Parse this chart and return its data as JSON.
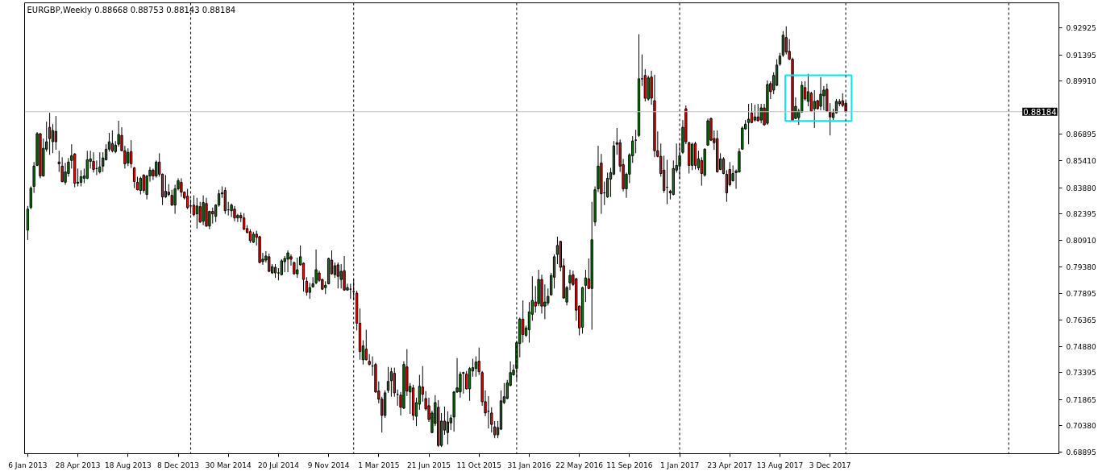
{
  "chart_data": {
    "type": "candlestick",
    "title": "EURGBP,Weekly 0.88668 0.88753 0.88143 0.88184",
    "x": [
      "2013-01-06",
      "2013-01-13",
      "2013-01-20",
      "2013-01-27",
      "2013-02-03",
      "2013-02-10",
      "2013-02-17",
      "2013-02-24",
      "2013-03-03",
      "2013-03-10",
      "2013-03-17",
      "2013-03-24",
      "2013-03-31",
      "2013-04-07",
      "2013-04-14",
      "2013-04-21",
      "2013-04-28",
      "2013-05-05",
      "2013-05-12",
      "2013-05-19",
      "2013-05-26",
      "2013-06-02",
      "2013-06-09",
      "2013-06-16",
      "2013-06-23",
      "2013-06-30",
      "2013-07-07",
      "2013-07-14",
      "2013-07-21",
      "2013-07-28",
      "2013-08-04",
      "2013-08-11",
      "2013-08-18",
      "2013-08-25",
      "2013-09-01",
      "2013-09-08",
      "2013-09-15",
      "2013-09-22",
      "2013-09-29",
      "2013-10-06",
      "2013-10-13",
      "2013-10-20",
      "2013-10-27",
      "2013-11-03",
      "2013-11-10",
      "2013-11-17",
      "2013-11-24",
      "2013-12-01",
      "2013-12-08",
      "2013-12-15",
      "2013-12-22",
      "2013-12-29",
      "2014-01-05",
      "2014-01-12",
      "2014-01-19",
      "2014-01-26",
      "2014-02-02",
      "2014-02-09",
      "2014-02-16",
      "2014-02-23",
      "2014-03-02",
      "2014-03-09",
      "2014-03-16",
      "2014-03-23",
      "2014-03-30",
      "2014-04-06",
      "2014-04-13",
      "2014-04-20",
      "2014-04-27",
      "2014-05-04",
      "2014-05-11",
      "2014-05-18",
      "2014-05-25",
      "2014-06-01",
      "2014-06-08",
      "2014-06-15",
      "2014-06-22",
      "2014-06-29",
      "2014-07-06",
      "2014-07-13",
      "2014-07-20",
      "2014-07-27",
      "2014-08-03",
      "2014-08-10",
      "2014-08-17",
      "2014-08-24",
      "2014-08-31",
      "2014-09-07",
      "2014-09-14",
      "2014-09-21",
      "2014-09-28",
      "2014-10-05",
      "2014-10-12",
      "2014-10-19",
      "2014-10-26",
      "2014-11-02",
      "2014-11-09",
      "2014-11-16",
      "2014-11-23",
      "2014-11-30",
      "2014-12-07",
      "2014-12-14",
      "2014-12-21",
      "2014-12-28",
      "2015-01-04",
      "2015-01-11",
      "2015-01-18",
      "2015-01-25",
      "2015-02-01",
      "2015-02-08",
      "2015-02-15",
      "2015-02-22",
      "2015-03-01",
      "2015-03-08",
      "2015-03-15",
      "2015-03-22",
      "2015-03-29",
      "2015-04-05",
      "2015-04-12",
      "2015-04-19",
      "2015-04-26",
      "2015-05-03",
      "2015-05-10",
      "2015-05-17",
      "2015-05-24",
      "2015-05-31",
      "2015-06-07",
      "2015-06-14",
      "2015-06-21",
      "2015-06-28",
      "2015-07-05",
      "2015-07-12",
      "2015-07-19",
      "2015-07-26",
      "2015-08-02",
      "2015-08-09",
      "2015-08-16",
      "2015-08-23",
      "2015-08-30",
      "2015-09-06",
      "2015-09-13",
      "2015-09-20",
      "2015-09-27",
      "2015-10-04",
      "2015-10-11",
      "2015-10-18",
      "2015-10-25",
      "2015-11-01",
      "2015-11-08",
      "2015-11-15",
      "2015-11-22",
      "2015-11-29",
      "2015-12-06",
      "2015-12-13",
      "2015-12-20",
      "2015-12-27",
      "2016-01-03",
      "2016-01-10",
      "2016-01-17",
      "2016-01-24",
      "2016-01-31",
      "2016-02-07",
      "2016-02-14",
      "2016-02-21",
      "2016-02-28",
      "2016-03-06",
      "2016-03-13",
      "2016-03-20",
      "2016-03-27",
      "2016-04-03",
      "2016-04-10",
      "2016-04-17",
      "2016-04-24",
      "2016-05-01",
      "2016-05-08",
      "2016-05-15",
      "2016-05-22",
      "2016-05-29",
      "2016-06-05",
      "2016-06-12",
      "2016-06-19",
      "2016-06-26",
      "2016-07-03",
      "2016-07-10",
      "2016-07-17",
      "2016-07-24",
      "2016-07-31",
      "2016-08-07",
      "2016-08-14",
      "2016-08-21",
      "2016-08-28",
      "2016-09-04",
      "2016-09-11",
      "2016-09-18",
      "2016-09-25",
      "2016-10-02",
      "2016-10-09",
      "2016-10-16",
      "2016-10-23",
      "2016-10-30",
      "2016-11-06",
      "2016-11-13",
      "2016-11-20",
      "2016-11-27",
      "2016-12-04",
      "2016-12-11",
      "2016-12-18",
      "2016-12-25",
      "2017-01-01",
      "2017-01-08",
      "2017-01-15",
      "2017-01-22",
      "2017-01-29",
      "2017-02-05",
      "2017-02-12",
      "2017-02-19",
      "2017-02-26",
      "2017-03-05",
      "2017-03-12",
      "2017-03-19",
      "2017-03-26",
      "2017-04-02",
      "2017-04-09",
      "2017-04-16",
      "2017-04-23",
      "2017-04-30",
      "2017-05-07",
      "2017-05-14",
      "2017-05-21",
      "2017-05-28",
      "2017-06-04",
      "2017-06-11",
      "2017-06-18",
      "2017-06-25",
      "2017-07-02",
      "2017-07-09",
      "2017-07-16",
      "2017-07-23",
      "2017-07-30",
      "2017-08-06",
      "2017-08-13",
      "2017-08-20",
      "2017-08-27",
      "2017-09-03",
      "2017-09-10",
      "2017-09-17",
      "2017-09-24",
      "2017-10-01",
      "2017-10-08",
      "2017-10-15",
      "2017-10-22",
      "2017-10-29",
      "2017-11-05",
      "2017-11-12",
      "2017-11-19",
      "2017-11-26",
      "2017-12-03",
      "2017-12-10",
      "2017-12-17",
      "2017-12-24",
      "2017-12-31",
      "2018-01-07"
    ],
    "ohlc": [
      [
        0.8147,
        0.8284,
        0.8092,
        0.8266
      ],
      [
        0.8275,
        0.8395,
        0.8266,
        0.8385
      ],
      [
        0.8395,
        0.8533,
        0.8358,
        0.851
      ],
      [
        0.8514,
        0.8703,
        0.851,
        0.8694
      ],
      [
        0.8694,
        0.8698,
        0.8441,
        0.8454
      ],
      [
        0.8454,
        0.8666,
        0.845,
        0.8611
      ],
      [
        0.8606,
        0.8762,
        0.8592,
        0.8648
      ],
      [
        0.873,
        0.8812,
        0.8574,
        0.8666
      ],
      [
        0.8648,
        0.8748,
        0.8583,
        0.8712
      ],
      [
        0.8707,
        0.8794,
        0.8602,
        0.8648
      ],
      [
        0.8533,
        0.8597,
        0.8477,
        0.8523
      ],
      [
        0.851,
        0.856,
        0.8418,
        0.8422
      ],
      [
        0.8418,
        0.8528,
        0.8404,
        0.8477
      ],
      [
        0.8468,
        0.8556,
        0.845,
        0.8533
      ],
      [
        0.8542,
        0.8634,
        0.8496,
        0.8569
      ],
      [
        0.8579,
        0.8583,
        0.839,
        0.8413
      ],
      [
        0.8418,
        0.8496,
        0.8395,
        0.8413
      ],
      [
        0.8418,
        0.8487,
        0.8395,
        0.845
      ],
      [
        0.8441,
        0.8496,
        0.8413,
        0.8454
      ],
      [
        0.8441,
        0.8597,
        0.8436,
        0.8546
      ],
      [
        0.8537,
        0.8597,
        0.8496,
        0.8551
      ],
      [
        0.8537,
        0.8588,
        0.8473,
        0.8491
      ],
      [
        0.8496,
        0.8542,
        0.8459,
        0.8496
      ],
      [
        0.8477,
        0.8588,
        0.8468,
        0.8505
      ],
      [
        0.851,
        0.8588,
        0.8477,
        0.8556
      ],
      [
        0.8546,
        0.8634,
        0.8542,
        0.8606
      ],
      [
        0.8606,
        0.8698,
        0.8592,
        0.8648
      ],
      [
        0.8638,
        0.8712,
        0.8588,
        0.8597
      ],
      [
        0.8592,
        0.8652,
        0.8583,
        0.8629
      ],
      [
        0.8634,
        0.8767,
        0.862,
        0.8689
      ],
      [
        0.8684,
        0.873,
        0.8597,
        0.8597
      ],
      [
        0.8597,
        0.8625,
        0.8496,
        0.8523
      ],
      [
        0.8528,
        0.8611,
        0.851,
        0.8588
      ],
      [
        0.8592,
        0.8657,
        0.85,
        0.8523
      ],
      [
        0.85,
        0.8505,
        0.8385,
        0.8422
      ],
      [
        0.8418,
        0.845,
        0.8372,
        0.8376
      ],
      [
        0.8372,
        0.845,
        0.8349,
        0.8441
      ],
      [
        0.8459,
        0.8464,
        0.8358,
        0.8372
      ],
      [
        0.8349,
        0.8459,
        0.8321,
        0.8454
      ],
      [
        0.8454,
        0.8505,
        0.8422,
        0.8487
      ],
      [
        0.8487,
        0.8496,
        0.8431,
        0.8454
      ],
      [
        0.8454,
        0.8542,
        0.8445,
        0.8533
      ],
      [
        0.8533,
        0.8583,
        0.845,
        0.8464
      ],
      [
        0.8464,
        0.8468,
        0.8289,
        0.8335
      ],
      [
        0.8335,
        0.8459,
        0.833,
        0.8367
      ],
      [
        0.8362,
        0.8408,
        0.8339,
        0.8349
      ],
      [
        0.8344,
        0.8376,
        0.8284,
        0.8289
      ],
      [
        0.8289,
        0.8404,
        0.8239,
        0.8381
      ],
      [
        0.8381,
        0.8441,
        0.8372,
        0.8427
      ],
      [
        0.8418,
        0.8441,
        0.8335,
        0.8362
      ],
      [
        0.8362,
        0.8367,
        0.8321,
        0.833
      ],
      [
        0.8339,
        0.8381,
        0.8266,
        0.8275
      ],
      [
        0.8284,
        0.8321,
        0.8239,
        0.8284
      ],
      [
        0.8289,
        0.8344,
        0.8225,
        0.8234
      ],
      [
        0.8239,
        0.833,
        0.8156,
        0.8284
      ],
      [
        0.828,
        0.8307,
        0.8188,
        0.8193
      ],
      [
        0.8197,
        0.8344,
        0.8175,
        0.8303
      ],
      [
        0.8298,
        0.833,
        0.8165,
        0.817
      ],
      [
        0.817,
        0.8257,
        0.8152,
        0.8253
      ],
      [
        0.8253,
        0.8275,
        0.8184,
        0.8239
      ],
      [
        0.8225,
        0.8294,
        0.8193,
        0.8289
      ],
      [
        0.8289,
        0.8376,
        0.828,
        0.8353
      ],
      [
        0.8353,
        0.8395,
        0.833,
        0.8358
      ],
      [
        0.8372,
        0.839,
        0.8239,
        0.8257
      ],
      [
        0.8262,
        0.8307,
        0.823,
        0.8262
      ],
      [
        0.8257,
        0.8298,
        0.8221,
        0.8289
      ],
      [
        0.8266,
        0.8284,
        0.8197,
        0.8216
      ],
      [
        0.8216,
        0.8239,
        0.8193,
        0.823
      ],
      [
        0.823,
        0.8248,
        0.8193,
        0.8216
      ],
      [
        0.8216,
        0.8243,
        0.8147,
        0.8152
      ],
      [
        0.8156,
        0.8175,
        0.8129,
        0.8133
      ],
      [
        0.8138,
        0.8152,
        0.8074,
        0.8087
      ],
      [
        0.8078,
        0.8138,
        0.8074,
        0.8124
      ],
      [
        0.8124,
        0.8143,
        0.806,
        0.8106
      ],
      [
        0.811,
        0.8115,
        0.7959,
        0.7963
      ],
      [
        0.7968,
        0.8018,
        0.795,
        0.7982
      ],
      [
        0.7977,
        0.8028,
        0.7963,
        0.8
      ],
      [
        0.7996,
        0.8014,
        0.7908,
        0.7913
      ],
      [
        0.7904,
        0.7954,
        0.7899,
        0.794
      ],
      [
        0.7936,
        0.7954,
        0.7876,
        0.7904
      ],
      [
        0.7904,
        0.7931,
        0.7862,
        0.7904
      ],
      [
        0.7894,
        0.7982,
        0.789,
        0.7973
      ],
      [
        0.7968,
        0.8,
        0.7908,
        0.7986
      ],
      [
        0.7982,
        0.8032,
        0.7908,
        0.8018
      ],
      [
        0.7996,
        0.8009,
        0.7945,
        0.7982
      ],
      [
        0.7963,
        0.7968,
        0.7894,
        0.7899
      ],
      [
        0.7899,
        0.7991,
        0.7876,
        0.7922
      ],
      [
        0.795,
        0.806,
        0.7945,
        0.7996
      ],
      [
        0.7959,
        0.7963,
        0.7798,
        0.7867
      ],
      [
        0.7857,
        0.788,
        0.7775,
        0.7794
      ],
      [
        0.7794,
        0.7848,
        0.7757,
        0.7821
      ],
      [
        0.7825,
        0.788,
        0.7821,
        0.7843
      ],
      [
        0.7848,
        0.8037,
        0.7839,
        0.7922
      ],
      [
        0.7904,
        0.7917,
        0.7853,
        0.7862
      ],
      [
        0.7867,
        0.7871,
        0.7807,
        0.7812
      ],
      [
        0.7821,
        0.7857,
        0.7784,
        0.7834
      ],
      [
        0.7843,
        0.7991,
        0.7839,
        0.7986
      ],
      [
        0.7977,
        0.8032,
        0.7894,
        0.7899
      ],
      [
        0.7894,
        0.7963,
        0.7876,
        0.7945
      ],
      [
        0.795,
        0.7963,
        0.7816,
        0.7885
      ],
      [
        0.7867,
        0.7954,
        0.7816,
        0.7913
      ],
      [
        0.7917,
        0.8,
        0.7803,
        0.7807
      ],
      [
        0.7807,
        0.7843,
        0.7803,
        0.7821
      ],
      [
        0.7812,
        0.7843,
        0.7757,
        0.7812
      ],
      [
        0.7798,
        0.7867,
        0.7748,
        0.7798
      ],
      [
        0.7789,
        0.7803,
        0.7578,
        0.7619
      ],
      [
        0.7619,
        0.7702,
        0.7412,
        0.7458
      ],
      [
        0.7412,
        0.7522,
        0.7385,
        0.749
      ],
      [
        0.7472,
        0.7582,
        0.7408,
        0.7412
      ],
      [
        0.7403,
        0.7444,
        0.738,
        0.7385
      ],
      [
        0.7376,
        0.7431,
        0.7321,
        0.7376
      ],
      [
        0.7385,
        0.7394,
        0.7224,
        0.7229
      ],
      [
        0.7234,
        0.7289,
        0.7165,
        0.7188
      ],
      [
        0.7188,
        0.7202,
        0.6999,
        0.7096
      ],
      [
        0.7096,
        0.7238,
        0.7082,
        0.7224
      ],
      [
        0.7238,
        0.7371,
        0.7224,
        0.7289
      ],
      [
        0.7293,
        0.7367,
        0.7202,
        0.7344
      ],
      [
        0.7335,
        0.7367,
        0.7202,
        0.7224
      ],
      [
        0.7215,
        0.7243,
        0.7151,
        0.7215
      ],
      [
        0.7211,
        0.7229,
        0.7096,
        0.7142
      ],
      [
        0.7137,
        0.7403,
        0.7133,
        0.7385
      ],
      [
        0.7371,
        0.7472,
        0.7206,
        0.7234
      ],
      [
        0.7229,
        0.728,
        0.7105,
        0.7261
      ],
      [
        0.7252,
        0.727,
        0.7068,
        0.7096
      ],
      [
        0.7091,
        0.7197,
        0.7036,
        0.7169
      ],
      [
        0.716,
        0.7326,
        0.7128,
        0.7261
      ],
      [
        0.7257,
        0.7376,
        0.7174,
        0.7215
      ],
      [
        0.7192,
        0.7234,
        0.7123,
        0.7133
      ],
      [
        0.7151,
        0.7197,
        0.7059,
        0.7073
      ],
      [
        0.6999,
        0.7123,
        0.6995,
        0.711
      ],
      [
        0.705,
        0.7211,
        0.7036,
        0.7169
      ],
      [
        0.7142,
        0.7183,
        0.6917,
        0.6926
      ],
      [
        0.6926,
        0.711,
        0.6917,
        0.7064
      ],
      [
        0.7064,
        0.7146,
        0.6986,
        0.7013
      ],
      [
        0.6999,
        0.7119,
        0.6931,
        0.7059
      ],
      [
        0.7054,
        0.7101,
        0.7013,
        0.7082
      ],
      [
        0.7087,
        0.7234,
        0.7004,
        0.7229
      ],
      [
        0.7229,
        0.7421,
        0.7224,
        0.7252
      ],
      [
        0.7229,
        0.7344,
        0.7197,
        0.733
      ],
      [
        0.7335,
        0.7344,
        0.722,
        0.7339
      ],
      [
        0.733,
        0.7348,
        0.7243,
        0.7247
      ],
      [
        0.7247,
        0.7371,
        0.7179,
        0.7362
      ],
      [
        0.7348,
        0.7417,
        0.7316,
        0.7367
      ],
      [
        0.7362,
        0.7431,
        0.7316,
        0.7399
      ],
      [
        0.7403,
        0.7481,
        0.7326,
        0.7344
      ],
      [
        0.7339,
        0.7348,
        0.7151,
        0.7174
      ],
      [
        0.7174,
        0.7238,
        0.7091,
        0.711
      ],
      [
        0.7119,
        0.7206,
        0.7022,
        0.7119
      ],
      [
        0.711,
        0.7142,
        0.6999,
        0.7045
      ],
      [
        0.7031,
        0.7064,
        0.6967,
        0.6986
      ],
      [
        0.6986,
        0.7064,
        0.6967,
        0.7027
      ],
      [
        0.7018,
        0.7238,
        0.7013,
        0.7179
      ],
      [
        0.7169,
        0.728,
        0.716,
        0.7202
      ],
      [
        0.7192,
        0.7298,
        0.7188,
        0.728
      ],
      [
        0.7266,
        0.7403,
        0.7261,
        0.7339
      ],
      [
        0.7326,
        0.7385,
        0.7321,
        0.7353
      ],
      [
        0.7362,
        0.7518,
        0.7298,
        0.7509
      ],
      [
        0.7504,
        0.7651,
        0.7426,
        0.7642
      ],
      [
        0.7642,
        0.7748,
        0.7509,
        0.7555
      ],
      [
        0.755,
        0.7605,
        0.7541,
        0.7592
      ],
      [
        0.7582,
        0.7739,
        0.7509,
        0.7683
      ],
      [
        0.767,
        0.7885,
        0.7633,
        0.7748
      ],
      [
        0.7739,
        0.783,
        0.7679,
        0.7716
      ],
      [
        0.773,
        0.7922,
        0.7716,
        0.7867
      ],
      [
        0.7867,
        0.7894,
        0.7674,
        0.7716
      ],
      [
        0.7716,
        0.7839,
        0.7642,
        0.7739
      ],
      [
        0.7734,
        0.7816,
        0.772,
        0.7771
      ],
      [
        0.778,
        0.7904,
        0.7775,
        0.789
      ],
      [
        0.788,
        0.8009,
        0.7816,
        0.7996
      ],
      [
        0.8009,
        0.811,
        0.7954,
        0.806
      ],
      [
        0.8083,
        0.8087,
        0.7913,
        0.7936
      ],
      [
        0.7945,
        0.7986,
        0.7757,
        0.7762
      ],
      [
        0.7739,
        0.783,
        0.772,
        0.7821
      ],
      [
        0.7848,
        0.7922,
        0.7807,
        0.789
      ],
      [
        0.7894,
        0.7917,
        0.783,
        0.7839
      ],
      [
        0.7871,
        0.7876,
        0.7633,
        0.7693
      ],
      [
        0.7716,
        0.772,
        0.755,
        0.7592
      ],
      [
        0.7596,
        0.7825,
        0.756,
        0.7821
      ],
      [
        0.7834,
        0.7922,
        0.7739,
        0.7876
      ],
      [
        0.7871,
        0.7986,
        0.7812,
        0.7816
      ],
      [
        0.7816,
        0.8307,
        0.7582,
        0.8092
      ],
      [
        0.8193,
        0.8395,
        0.817,
        0.8376
      ],
      [
        0.8381,
        0.8625,
        0.8362,
        0.851
      ],
      [
        0.8528,
        0.8579,
        0.8239,
        0.8353
      ],
      [
        0.8358,
        0.8422,
        0.8289,
        0.8358
      ],
      [
        0.8335,
        0.8473,
        0.833,
        0.8441
      ],
      [
        0.8436,
        0.85,
        0.8335,
        0.8473
      ],
      [
        0.8464,
        0.8652,
        0.8459,
        0.8625
      ],
      [
        0.8634,
        0.8726,
        0.8574,
        0.8643
      ],
      [
        0.8643,
        0.8661,
        0.8477,
        0.851
      ],
      [
        0.8519,
        0.8551,
        0.8367,
        0.8381
      ],
      [
        0.8381,
        0.8473,
        0.833,
        0.8464
      ],
      [
        0.8464,
        0.8583,
        0.8413,
        0.8574
      ],
      [
        0.8569,
        0.868,
        0.8528,
        0.8652
      ],
      [
        0.8657,
        0.8716,
        0.8583,
        0.8657
      ],
      [
        0.8684,
        0.9258,
        0.8675,
        0.9005
      ],
      [
        0.9005,
        0.9143,
        0.8964,
        0.9005
      ],
      [
        0.9024,
        0.906,
        0.8877,
        0.8895
      ],
      [
        0.889,
        0.9024,
        0.8881,
        0.901
      ],
      [
        0.9015,
        0.9051,
        0.8858,
        0.8895
      ],
      [
        0.8881,
        0.9028,
        0.856,
        0.8597
      ],
      [
        0.8597,
        0.8707,
        0.856,
        0.8565
      ],
      [
        0.8565,
        0.8638,
        0.845,
        0.8468
      ],
      [
        0.8487,
        0.8569,
        0.8358,
        0.8372
      ],
      [
        0.839,
        0.8546,
        0.8294,
        0.839
      ],
      [
        0.8367,
        0.8376,
        0.8321,
        0.8358
      ],
      [
        0.8349,
        0.8542,
        0.8344,
        0.8496
      ],
      [
        0.8487,
        0.8638,
        0.8473,
        0.8514
      ],
      [
        0.851,
        0.8638,
        0.8436,
        0.8569
      ],
      [
        0.8588,
        0.8771,
        0.8579,
        0.873
      ],
      [
        0.8835,
        0.8854,
        0.8634,
        0.8648
      ],
      [
        0.8643,
        0.8648,
        0.8468,
        0.8514
      ],
      [
        0.8514,
        0.8643,
        0.8487,
        0.8634
      ],
      [
        0.8638,
        0.8648,
        0.8491,
        0.8514
      ],
      [
        0.85,
        0.8597,
        0.8487,
        0.8551
      ],
      [
        0.8542,
        0.856,
        0.8399,
        0.8468
      ],
      [
        0.8459,
        0.8611,
        0.845,
        0.8606
      ],
      [
        0.8629,
        0.878,
        0.8625,
        0.8767
      ],
      [
        0.878,
        0.8785,
        0.8652,
        0.8657
      ],
      [
        0.8666,
        0.8712,
        0.8602,
        0.8643
      ],
      [
        0.8666,
        0.8712,
        0.8473,
        0.8477
      ],
      [
        0.8491,
        0.8583,
        0.8487,
        0.8551
      ],
      [
        0.8551,
        0.856,
        0.8464,
        0.8468
      ],
      [
        0.8464,
        0.8487,
        0.8307,
        0.8358
      ],
      [
        0.8491,
        0.8533,
        0.8395,
        0.8404
      ],
      [
        0.8427,
        0.8514,
        0.8422,
        0.8468
      ],
      [
        0.8473,
        0.8491,
        0.8381,
        0.8482
      ],
      [
        0.8477,
        0.8611,
        0.8473,
        0.8592
      ],
      [
        0.8606,
        0.8735,
        0.8602,
        0.8726
      ],
      [
        0.8721,
        0.8771,
        0.8716,
        0.8748
      ],
      [
        0.8757,
        0.8863,
        0.8634,
        0.8776
      ],
      [
        0.8812,
        0.8867,
        0.8753,
        0.8757
      ],
      [
        0.8771,
        0.8858,
        0.8762,
        0.8789
      ],
      [
        0.8789,
        0.8863,
        0.8762,
        0.8767
      ],
      [
        0.8771,
        0.8863,
        0.8753,
        0.884
      ],
      [
        0.884,
        0.8863,
        0.8739,
        0.8744
      ],
      [
        0.8753,
        0.8996,
        0.8744,
        0.8973
      ],
      [
        0.8978,
        0.8991,
        0.889,
        0.8932
      ],
      [
        0.8941,
        0.9042,
        0.8918,
        0.9024
      ],
      [
        0.8968,
        0.9116,
        0.8964,
        0.9083
      ],
      [
        0.9088,
        0.9152,
        0.9079,
        0.9134
      ],
      [
        0.9139,
        0.9276,
        0.9129,
        0.9253
      ],
      [
        0.9239,
        0.9303,
        0.9143,
        0.9157
      ],
      [
        0.9161,
        0.923,
        0.9111,
        0.9116
      ],
      [
        0.9116,
        0.9125,
        0.8762,
        0.8767
      ],
      [
        0.878,
        0.89,
        0.8776,
        0.8849
      ],
      [
        0.8785,
        0.8835,
        0.8744,
        0.8822
      ],
      [
        0.8817,
        0.8991,
        0.8812,
        0.8968
      ],
      [
        0.8955,
        0.8991,
        0.8881,
        0.889
      ],
      [
        0.8877,
        0.9033,
        0.8849,
        0.8932
      ],
      [
        0.8923,
        0.8932,
        0.8817,
        0.8822
      ],
      [
        0.8835,
        0.8941,
        0.8726,
        0.8877
      ],
      [
        0.8881,
        0.8886,
        0.8831,
        0.8835
      ],
      [
        0.8849,
        0.9015,
        0.8826,
        0.8918
      ],
      [
        0.8909,
        0.8964,
        0.8826,
        0.8941
      ],
      [
        0.8946,
        0.8978,
        0.8817,
        0.8822
      ],
      [
        0.8817,
        0.8867,
        0.8684,
        0.8789
      ],
      [
        0.8785,
        0.8835,
        0.8771,
        0.8812
      ],
      [
        0.8812,
        0.889,
        0.8808,
        0.8877
      ],
      [
        0.8863,
        0.889,
        0.8849,
        0.8877
      ],
      [
        0.8881,
        0.8923,
        0.8844,
        0.8854
      ],
      [
        0.88668,
        0.88753,
        0.88143,
        0.88184
      ]
    ],
    "colors": [
      "#008000",
      "#008000",
      "#008000",
      "#008000",
      "#ff0000",
      "#008000",
      "#008000",
      "#ff0000",
      "#008000",
      "#ff0000",
      "#ff0000",
      "#ff0000",
      "#008000",
      "#008000",
      "#008000",
      "#ff0000",
      "#ff0000",
      "#008000",
      "#008000",
      "#008000",
      "#008000",
      "#ff0000",
      "#000000",
      "#008000",
      "#008000",
      "#008000",
      "#008000",
      "#ff0000",
      "#008000",
      "#008000",
      "#ff0000",
      "#ff0000",
      "#008000",
      "#ff0000",
      "#ff0000",
      "#ff0000",
      "#008000",
      "#ff0000",
      "#008000",
      "#008000",
      "#ff0000",
      "#008000",
      "#ff0000",
      "#ff0000",
      "#008000",
      "#ff0000",
      "#ff0000",
      "#008000",
      "#008000",
      "#ff0000",
      "#ff0000",
      "#ff0000",
      "#000000",
      "#ff0000",
      "#008000",
      "#ff0000",
      "#008000",
      "#ff0000",
      "#008000",
      "#ff0000",
      "#008000",
      "#008000",
      "#008000",
      "#ff0000",
      "#000000",
      "#008000",
      "#ff0000",
      "#008000",
      "#ff0000",
      "#ff0000",
      "#ff0000",
      "#ff0000",
      "#008000",
      "#ff0000",
      "#ff0000",
      "#008000",
      "#008000",
      "#ff0000",
      "#008000",
      "#ff0000",
      "#000000",
      "#008000",
      "#008000",
      "#008000",
      "#ff0000",
      "#ff0000",
      "#008000",
      "#008000",
      "#ff0000",
      "#ff0000",
      "#008000",
      "#008000",
      "#008000",
      "#ff0000",
      "#ff0000",
      "#008000",
      "#008000",
      "#ff0000",
      "#008000",
      "#ff0000",
      "#008000",
      "#ff0000",
      "#008000",
      "#000000",
      "#000000",
      "#ff0000",
      "#ff0000",
      "#008000",
      "#ff0000",
      "#ff0000",
      "#000000",
      "#ff0000",
      "#ff0000",
      "#ff0000",
      "#008000",
      "#008000",
      "#008000",
      "#ff0000",
      "#000000",
      "#ff0000",
      "#008000",
      "#ff0000",
      "#008000",
      "#ff0000",
      "#008000",
      "#008000",
      "#ff0000",
      "#ff0000",
      "#ff0000",
      "#008000",
      "#008000",
      "#ff0000",
      "#008000",
      "#ff0000",
      "#008000",
      "#008000",
      "#008000",
      "#008000",
      "#008000",
      "#008000",
      "#ff0000",
      "#008000",
      "#008000",
      "#008000",
      "#ff0000",
      "#ff0000",
      "#ff0000",
      "#000000",
      "#ff0000",
      "#ff0000",
      "#008000",
      "#008000",
      "#008000",
      "#008000",
      "#008000",
      "#008000",
      "#008000",
      "#008000",
      "#ff0000",
      "#008000",
      "#008000",
      "#008000",
      "#ff0000",
      "#008000",
      "#ff0000",
      "#008000",
      "#008000",
      "#008000",
      "#008000",
      "#008000",
      "#ff0000",
      "#ff0000",
      "#008000",
      "#008000",
      "#ff0000",
      "#ff0000",
      "#ff0000",
      "#008000",
      "#008000",
      "#ff0000",
      "#008000",
      "#008000",
      "#008000",
      "#ff0000",
      "#000000",
      "#008000",
      "#008000",
      "#008000",
      "#008000",
      "#ff0000",
      "#ff0000",
      "#008000",
      "#008000",
      "#008000",
      "#000000",
      "#008000",
      "#000000",
      "#ff0000",
      "#008000",
      "#ff0000",
      "#ff0000",
      "#ff0000",
      "#ff0000",
      "#ff0000",
      "#000000",
      "#ff0000",
      "#008000",
      "#008000",
      "#008000",
      "#008000",
      "#ff0000",
      "#ff0000",
      "#008000",
      "#ff0000",
      "#008000",
      "#ff0000",
      "#008000",
      "#008000",
      "#ff0000",
      "#ff0000",
      "#ff0000",
      "#008000",
      "#ff0000",
      "#ff0000",
      "#ff0000",
      "#008000",
      "#008000",
      "#008000",
      "#008000",
      "#008000",
      "#008000",
      "#ff0000",
      "#008000",
      "#ff0000",
      "#008000",
      "#ff0000",
      "#008000",
      "#ff0000",
      "#008000",
      "#008000",
      "#008000",
      "#008000",
      "#ff0000",
      "#ff0000",
      "#ff0000",
      "#008000",
      "#008000",
      "#008000",
      "#ff0000",
      "#008000",
      "#ff0000",
      "#008000",
      "#ff0000",
      "#008000",
      "#008000",
      "#ff0000",
      "#ff0000",
      "#008000",
      "#008000",
      "#008000",
      "#ff0000",
      "#ff0000"
    ],
    "xlim": [
      "2012-12-30",
      "2019-04-28"
    ],
    "xticks": [
      {
        "value": "2013-01-06",
        "label": "6 Jan 2013"
      },
      {
        "value": "2013-04-28",
        "label": "28 Apr 2013"
      },
      {
        "value": "2013-08-18",
        "label": "18 Aug 2013"
      },
      {
        "value": "2013-12-08",
        "label": "8 Dec 2013"
      },
      {
        "value": "2014-03-30",
        "label": "30 Mar 2014"
      },
      {
        "value": "2014-07-20",
        "label": "20 Jul 2014"
      },
      {
        "value": "2014-11-09",
        "label": "9 Nov 2014"
      },
      {
        "value": "2015-03-01",
        "label": "1 Mar 2015"
      },
      {
        "value": "2015-06-21",
        "label": "21 Jun 2015"
      },
      {
        "value": "2015-10-11",
        "label": "11 Oct 2015"
      },
      {
        "value": "2016-01-31",
        "label": "31 Jan 2016"
      },
      {
        "value": "2016-05-22",
        "label": "22 May 2016"
      },
      {
        "value": "2016-09-11",
        "label": "11 Sep 2016"
      },
      {
        "value": "2017-01-01",
        "label": "1 Jan 2017"
      },
      {
        "value": "2017-04-23",
        "label": "23 Apr 2017"
      },
      {
        "value": "2017-08-13",
        "label": "13 Aug 2017"
      },
      {
        "value": "2017-12-03",
        "label": "3 Dec 2017"
      }
    ],
    "ylim": [
      0.6879,
      0.9436
    ],
    "yticks": [
      {
        "value": 0.92925,
        "label": "0.92925"
      },
      {
        "value": 0.91395,
        "label": "0.91395"
      },
      {
        "value": 0.8991,
        "label": "0.89910"
      },
      {
        "value": 0.86895,
        "label": "0.86895"
      },
      {
        "value": 0.8541,
        "label": "0.85410"
      },
      {
        "value": 0.8388,
        "label": "0.83880"
      },
      {
        "value": 0.82395,
        "label": "0.82395"
      },
      {
        "value": 0.8091,
        "label": "0.80910"
      },
      {
        "value": 0.7938,
        "label": "0.79380"
      },
      {
        "value": 0.77895,
        "label": "0.77895"
      },
      {
        "value": 0.76365,
        "label": "0.76365"
      },
      {
        "value": 0.7488,
        "label": "0.74880"
      },
      {
        "value": 0.73395,
        "label": "0.73395"
      },
      {
        "value": 0.71865,
        "label": "0.71865"
      },
      {
        "value": 0.7038,
        "label": "0.70380"
      },
      {
        "value": 0.68895,
        "label": "0.68895"
      }
    ],
    "ref_lines": [
      {
        "axis": "x",
        "value": "2014-01-05",
        "color": "#000000",
        "line_style": "dashed"
      },
      {
        "axis": "x",
        "value": "2015-01-04",
        "color": "#000000",
        "line_style": "dashed"
      },
      {
        "axis": "x",
        "value": "2016-01-03",
        "color": "#000000",
        "line_style": "dashed"
      },
      {
        "axis": "x",
        "value": "2017-01-01",
        "color": "#000000",
        "line_style": "dashed"
      },
      {
        "axis": "x",
        "value": "2018-01-07",
        "color": "#000000",
        "line_style": "dashed"
      },
      {
        "axis": "x",
        "value": "2019-01-06",
        "color": "#000000",
        "line_style": "dashed"
      },
      {
        "axis": "y",
        "value": 0.88184,
        "label": "0.88184",
        "color": "#c0c0c0",
        "line_style": "solid"
      }
    ],
    "grid": false
  }
}
